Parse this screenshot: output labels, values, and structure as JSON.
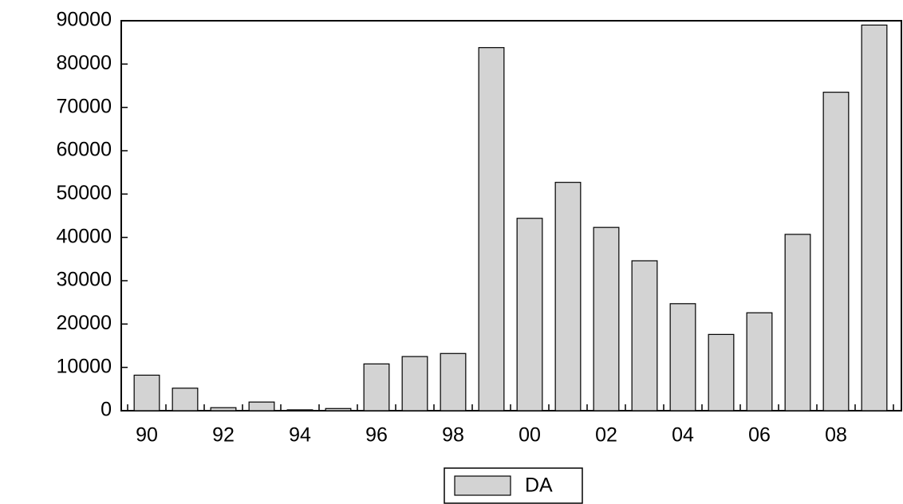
{
  "chart_data": {
    "type": "bar",
    "categories": [
      "90",
      null,
      "92",
      null,
      "94",
      null,
      "96",
      null,
      "98",
      null,
      "00",
      null,
      "02",
      null,
      "04",
      null,
      "06",
      null,
      "08",
      null
    ],
    "series": [
      {
        "name": "DA",
        "color": "#d3d3d3",
        "values": [
          8200,
          5200,
          700,
          2000,
          200,
          500,
          10800,
          12500,
          13200,
          83800,
          44400,
          52700,
          42300,
          34600,
          24700,
          17600,
          22600,
          40700,
          73500,
          89000
        ]
      }
    ],
    "ylim": [
      0,
      90000
    ],
    "yticks": [
      0,
      10000,
      20000,
      30000,
      40000,
      50000,
      60000,
      70000,
      80000,
      90000
    ],
    "legend": "bottom"
  }
}
